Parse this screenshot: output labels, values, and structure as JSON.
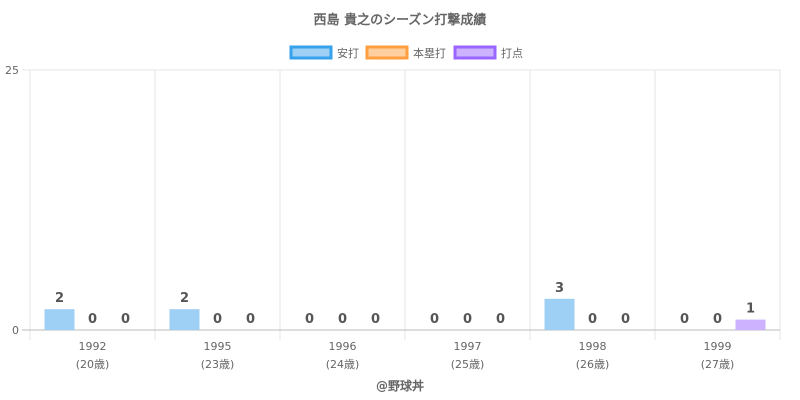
{
  "chart_data": {
    "type": "bar",
    "title": "西島 貴之のシーズン打撃成績",
    "categories": [
      "1992",
      "1995",
      "1996",
      "1997",
      "1998",
      "1999"
    ],
    "category_sub": [
      "(20歳)",
      "(23歳)",
      "(24歳)",
      "(25歳)",
      "(26歳)",
      "(27歳)"
    ],
    "series": [
      {
        "name": "安打",
        "values": [
          2,
          2,
          0,
          0,
          3,
          0
        ],
        "fill": "#9ecff5",
        "stroke": "#36a2eb"
      },
      {
        "name": "本塁打",
        "values": [
          0,
          0,
          0,
          0,
          0,
          0
        ],
        "fill": "#ffcf9f",
        "stroke": "#ff9f40"
      },
      {
        "name": "打点",
        "values": [
          0,
          0,
          0,
          0,
          0,
          1
        ],
        "fill": "#ccb2ff",
        "stroke": "#9966ff"
      }
    ],
    "ylim": [
      0,
      25
    ],
    "yticks": [
      0,
      25
    ],
    "legend_position": "top",
    "grid": true
  },
  "footer": "@野球丼"
}
